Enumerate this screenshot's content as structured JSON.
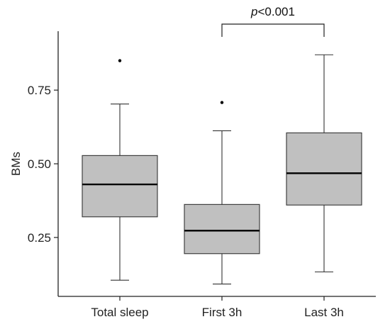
{
  "chart_data": {
    "type": "box",
    "title": "",
    "xlabel": "",
    "ylabel": "BMs",
    "categories": [
      "Total sleep",
      "First 3h",
      "Last 3h"
    ],
    "boxes": [
      {
        "category": "Total sleep",
        "whisker_low": 0.105,
        "q1": 0.32,
        "median": 0.43,
        "q3": 0.528,
        "whisker_high": 0.703,
        "outliers": [
          0.85
        ]
      },
      {
        "category": "First 3h",
        "whisker_low": 0.092,
        "q1": 0.195,
        "median": 0.273,
        "q3": 0.362,
        "whisker_high": 0.612,
        "outliers": [
          0.708
        ]
      },
      {
        "category": "Last 3h",
        "whisker_low": 0.133,
        "q1": 0.36,
        "median": 0.468,
        "q3": 0.605,
        "whisker_high": 0.87,
        "outliers": []
      }
    ],
    "yticks": [
      0.25,
      0.5,
      0.75
    ],
    "ytick_labels": [
      "0.25",
      "0.50",
      "0.75"
    ],
    "ylim": [
      0.05,
      0.95
    ],
    "grid": false,
    "box_color": "#c0c0c0",
    "annotation": {
      "prefix": "p",
      "text": "<0.001",
      "between": [
        "First 3h",
        "Last 3h"
      ]
    }
  }
}
